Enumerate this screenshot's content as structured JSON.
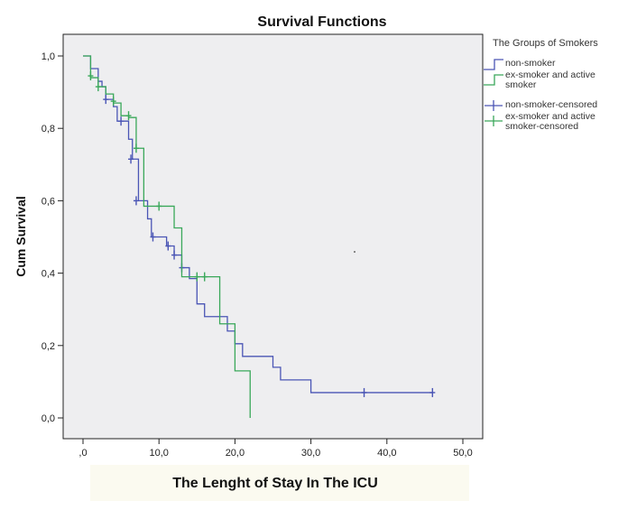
{
  "chart_data": {
    "type": "line",
    "title": "Survival Functions",
    "xlabel": "The Lenght of Stay In The ICU",
    "ylabel": "Cum Survival",
    "xlim": [
      0,
      50
    ],
    "ylim": [
      0,
      1.0
    ],
    "x_ticks": [
      0,
      10,
      20,
      30,
      40,
      50
    ],
    "x_tick_labels": [
      ",0",
      "10,0",
      "20,0",
      "30,0",
      "40,0",
      "50,0"
    ],
    "y_ticks": [
      0,
      0.2,
      0.4,
      0.6,
      0.8,
      1.0
    ],
    "y_tick_labels": [
      "0,0",
      "0,2",
      "0,4",
      "0,6",
      "0,8",
      "1,0"
    ],
    "grid": false,
    "legend": {
      "title": "The Groups of Smokers",
      "placement": "right",
      "entries": [
        {
          "label": "non-smoker",
          "kind": "step",
          "color": "#4a55b5"
        },
        {
          "label": "ex-smoker and active smoker",
          "kind": "step",
          "color": "#3aa85a"
        },
        {
          "label": "non-smoker-censored",
          "kind": "censor",
          "color": "#4a55b5"
        },
        {
          "label": "ex-smoker and active smoker-censored",
          "kind": "censor",
          "color": "#3aa85a"
        }
      ]
    },
    "series": [
      {
        "name": "non-smoker",
        "color": "#4a55b5",
        "steps": [
          [
            0,
            1.0
          ],
          [
            1,
            0.965
          ],
          [
            2,
            0.93
          ],
          [
            2.5,
            0.915
          ],
          [
            3,
            0.88
          ],
          [
            4,
            0.86
          ],
          [
            4.5,
            0.82
          ],
          [
            6,
            0.77
          ],
          [
            6.5,
            0.715
          ],
          [
            7.3,
            0.6
          ],
          [
            8.5,
            0.55
          ],
          [
            9,
            0.5
          ],
          [
            11,
            0.475
          ],
          [
            12,
            0.45
          ],
          [
            13,
            0.415
          ],
          [
            14,
            0.385
          ],
          [
            15,
            0.315
          ],
          [
            16,
            0.28
          ],
          [
            19,
            0.24
          ],
          [
            20,
            0.205
          ],
          [
            21,
            0.17
          ],
          [
            25,
            0.14
          ],
          [
            26,
            0.105
          ],
          [
            30,
            0.07
          ],
          [
            46,
            0.07
          ]
        ],
        "censored": [
          [
            3,
            0.88
          ],
          [
            5,
            0.82
          ],
          [
            6.3,
            0.715
          ],
          [
            7,
            0.6
          ],
          [
            9.2,
            0.5
          ],
          [
            11.2,
            0.475
          ],
          [
            12,
            0.45
          ],
          [
            13,
            0.415
          ],
          [
            37,
            0.07
          ],
          [
            46,
            0.07
          ]
        ]
      },
      {
        "name": "ex-smoker and active smoker",
        "color": "#3aa85a",
        "steps": [
          [
            0,
            1.0
          ],
          [
            1,
            0.94
          ],
          [
            2,
            0.915
          ],
          [
            3,
            0.895
          ],
          [
            4,
            0.87
          ],
          [
            5,
            0.835
          ],
          [
            6,
            0.83
          ],
          [
            7,
            0.745
          ],
          [
            8,
            0.585
          ],
          [
            12,
            0.525
          ],
          [
            13,
            0.39
          ],
          [
            18,
            0.26
          ],
          [
            20,
            0.13
          ],
          [
            22,
            0.0
          ]
        ],
        "censored": [
          [
            1,
            0.945
          ],
          [
            2,
            0.915
          ],
          [
            4,
            0.875
          ],
          [
            6,
            0.835
          ],
          [
            7,
            0.745
          ],
          [
            10,
            0.585
          ],
          [
            15,
            0.39
          ],
          [
            16,
            0.39
          ]
        ]
      }
    ]
  }
}
